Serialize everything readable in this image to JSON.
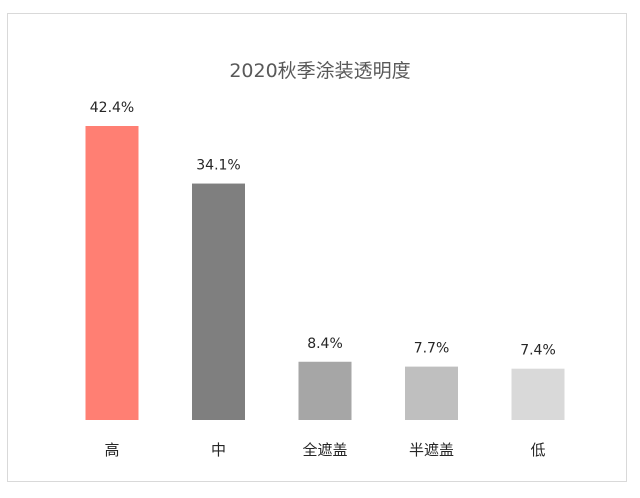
{
  "chart_data": {
    "type": "bar",
    "title": "2020秋季涂装透明度",
    "categories": [
      "高",
      "中",
      "全遮盖",
      "半遮盖",
      "低"
    ],
    "values": [
      42.4,
      34.1,
      8.4,
      7.7,
      7.4
    ],
    "value_labels": [
      "42.4%",
      "34.1%",
      "8.4%",
      "7.7%",
      "7.4%"
    ],
    "unit": "%",
    "colors": [
      "#ff7f73",
      "#7f7f7f",
      "#a6a6a6",
      "#bfbfbf",
      "#d9d9d9"
    ],
    "xlabel": "",
    "ylabel": "",
    "ylim": [
      0,
      42.4
    ],
    "grid": false,
    "legend": "none"
  }
}
